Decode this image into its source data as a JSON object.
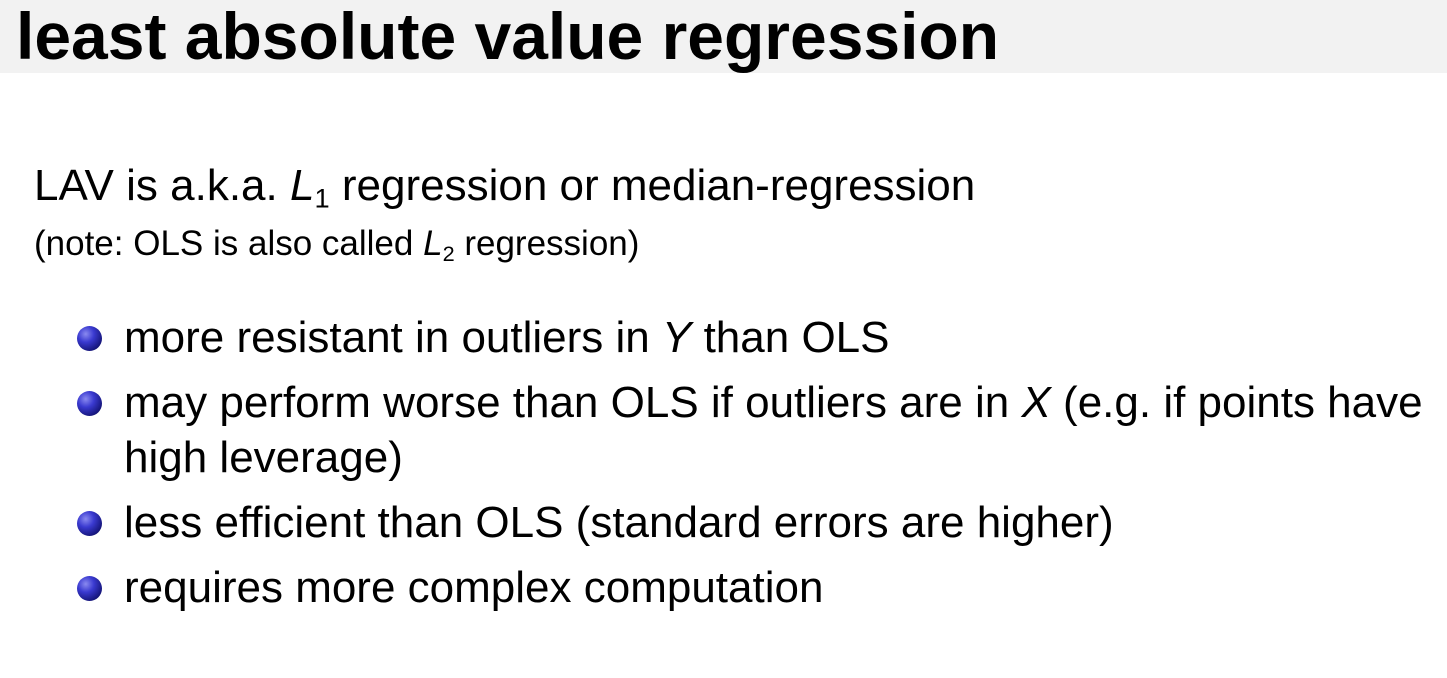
{
  "title": "least absolute value regression",
  "intro": {
    "pre": "LAV is a.k.a. ",
    "symbol": "L",
    "subscript": "1",
    "post": " regression or median-regression"
  },
  "note": {
    "pre": "(note: OLS is also called ",
    "symbol": "L",
    "subscript": "2",
    "post": " regression)"
  },
  "bullets": [
    {
      "pre": "more resistant in outliers in ",
      "var": "Y",
      "post": " than OLS"
    },
    {
      "pre": "may perform worse than OLS if outliers are in ",
      "var": "X",
      "post": " (e.g. if points have high leverage)"
    },
    {
      "text": "less efficient than OLS (standard errors are higher)"
    },
    {
      "text": "requires more complex computation"
    }
  ],
  "colors": {
    "title_bar": "#f2f2f2",
    "bullet": "#2a2ab5"
  },
  "icons": {
    "bullet": "ball-bullet-icon"
  }
}
